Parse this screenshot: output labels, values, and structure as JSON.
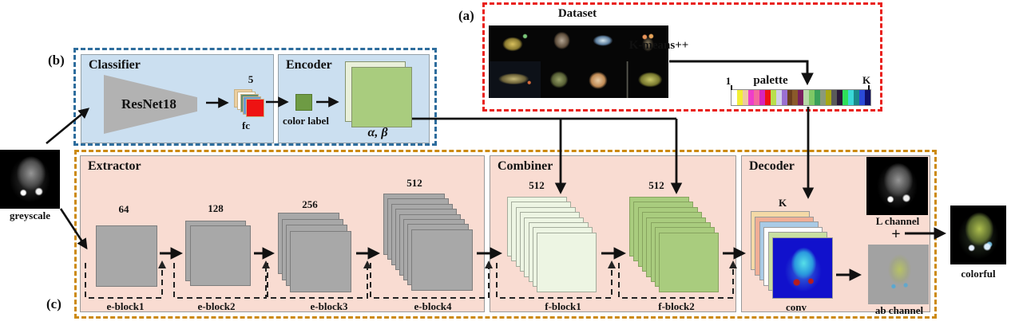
{
  "labels": {
    "a": "(a)",
    "b": "(b)",
    "c": "(c)"
  },
  "io": {
    "input_label": "greyscale",
    "output_label": "colorful"
  },
  "group_a": {
    "title": "Dataset",
    "kmeans_label": "K-means++",
    "palette_label": "palette",
    "palette_start": "1",
    "palette_end": "K",
    "palette_colors": [
      "#ffffff",
      "#f2ee35",
      "#eec9a2",
      "#ee3ec9",
      "#f3699e",
      "#d625bb",
      "#ee1111",
      "#b8e04c",
      "#cfd0e8",
      "#9a6fd0",
      "#6b3e1e",
      "#8a5a2a",
      "#7a1f5e",
      "#b8d8a8",
      "#7ec865",
      "#3aa05a",
      "#8a9a7a",
      "#a8a814",
      "#5a5a5a",
      "#2a1a3a",
      "#2ee05a",
      "#3ad8d8",
      "#1a8a8a",
      "#2a4ad8",
      "#10106a"
    ]
  },
  "classifier": {
    "title": "Classifier",
    "resnet_label": "ResNet18",
    "fc_count": "5",
    "fc_label": "fc",
    "fc_stack": {
      "layers": 5,
      "colors": [
        "#eccfa0",
        "#ffffff",
        "#5f8d72",
        "#6b9bd2",
        "#ee1212"
      ],
      "stroke": "#c9b184"
    }
  },
  "encoder": {
    "title": "Encoder",
    "color_label": "color label",
    "color_square": "#6e9b44",
    "alpha_beta_label": "α, β",
    "ab_stack": {
      "layers": 2,
      "colors": [
        "#e9f0da",
        "#a9cc7e"
      ],
      "stroke": "#85936d"
    }
  },
  "extractor": {
    "title": "Extractor",
    "blocks": [
      {
        "name": "e-block1",
        "channels": "64",
        "stack": {
          "layers": 1,
          "fill": "#a8a8a8",
          "stroke": "#7d7d7d"
        }
      },
      {
        "name": "e-block2",
        "channels": "128",
        "stack": {
          "layers": 2,
          "fill": "#a8a8a8",
          "stroke": "#7d7d7d"
        }
      },
      {
        "name": "e-block3",
        "channels": "256",
        "stack": {
          "layers": 4,
          "fill": "#a8a8a8",
          "stroke": "#7d7d7d"
        }
      },
      {
        "name": "e-block4",
        "channels": "512",
        "stack": {
          "layers": 8,
          "fill": "#a8a8a8",
          "stroke": "#7d7d7d"
        }
      }
    ]
  },
  "combiner": {
    "title": "Combiner",
    "blocks": [
      {
        "name": "f-block1",
        "channels": "512",
        "stack": {
          "layers": 8,
          "fill": "#edf5e3",
          "stroke": "#a3ab9b"
        }
      },
      {
        "name": "f-block2",
        "channels": "512",
        "stack": {
          "layers": 8,
          "fill": "#a9cc7e",
          "stroke": "#87a35f"
        }
      }
    ]
  },
  "decoder": {
    "title": "Decoder",
    "k_label": "K",
    "conv_label": "conv",
    "plus": "+",
    "l_channel_label": "L channel",
    "ab_channel_label": "ab channel",
    "stack": {
      "layers": 5,
      "colors": [
        "#f4d9a6",
        "#f0ae96",
        "#a9cbe6",
        "#ffffff",
        "#c8dfa2"
      ],
      "stroke": "#9a9a9a"
    }
  }
}
